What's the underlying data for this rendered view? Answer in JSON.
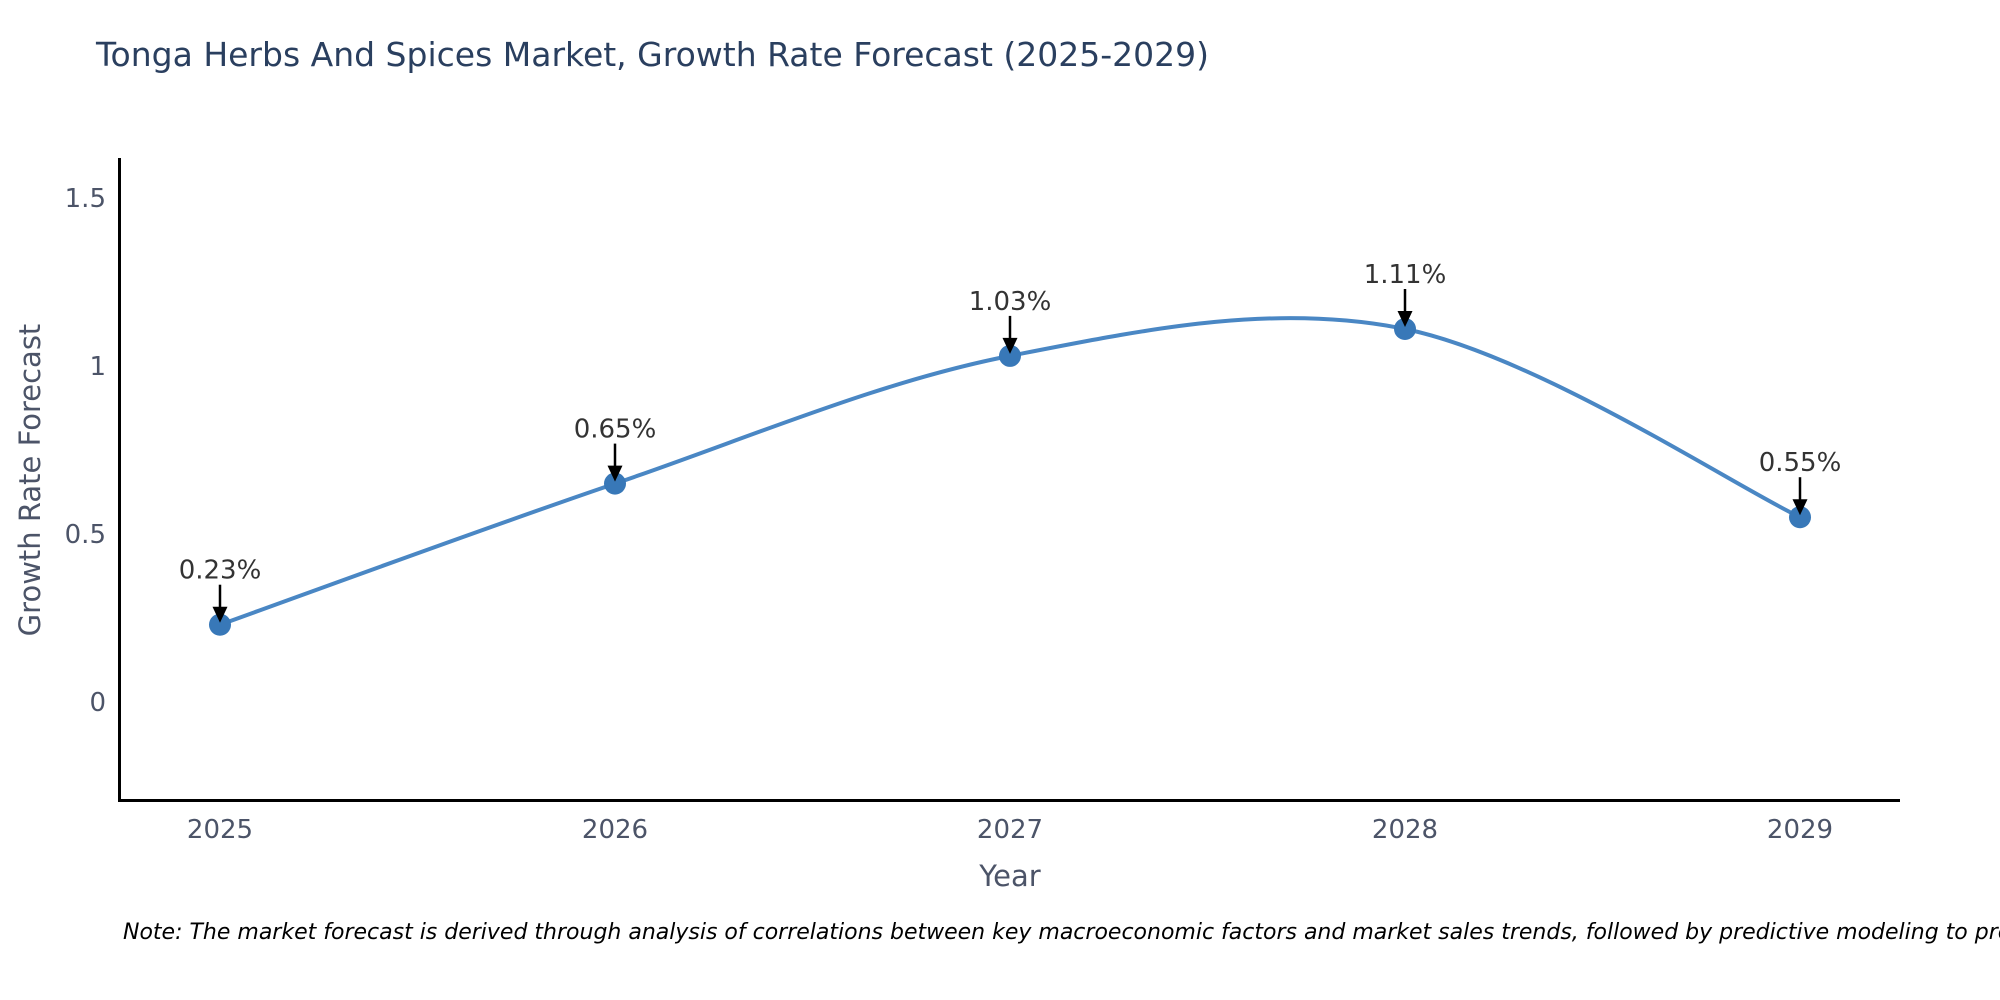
{
  "note": "Note: The market forecast is derived through analysis of correlations between key macroeconomic factors and market sales trends, followed by predictive modeling to project future sales",
  "chart_data": {
    "type": "line",
    "title": "Tonga Herbs And Spices Market, Growth Rate Forecast (2025-2029)",
    "x": [
      "2025",
      "2026",
      "2027",
      "2028",
      "2029"
    ],
    "values": [
      0.23,
      0.65,
      1.03,
      1.11,
      0.55
    ],
    "point_labels": [
      "0.23%",
      "0.65%",
      "1.03%",
      "1.11%",
      "0.55%"
    ],
    "xlabel": "Year",
    "ylabel": "Growth Rate Forecast",
    "yticks": {
      "values": [
        0,
        0.5,
        1,
        1.5
      ],
      "labels": [
        "0",
        "0.5",
        "1",
        "1.5"
      ]
    },
    "ylim": [
      -0.3,
      1.62
    ],
    "line_shape": "spline",
    "grid": false,
    "legend": false,
    "markers": true,
    "annotation_arrows": true,
    "colors": {
      "line": "#4a87c4",
      "marker": "#3878b8",
      "axis": "#000000",
      "arrow": "#000000",
      "title_text": "#2a3f5f",
      "tick_text": "#4c5468",
      "annotation_text": "#333333",
      "note_text": "#000000",
      "background": "#ffffff"
    }
  }
}
